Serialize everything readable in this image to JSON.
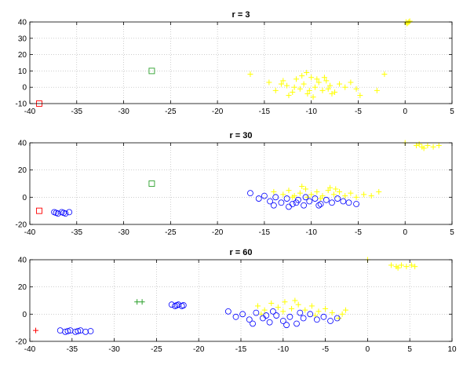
{
  "chart_data": [
    {
      "type": "scatter",
      "title": "r = 3",
      "xlabel": "",
      "ylabel": "",
      "xlim": [
        -40,
        5
      ],
      "ylim": [
        -10,
        40
      ],
      "xticks": [
        -40,
        -35,
        -30,
        -25,
        -20,
        -15,
        -10,
        -5,
        0,
        5
      ],
      "yticks": [
        -10,
        0,
        10,
        20,
        30,
        40
      ],
      "xtick_labels": [
        "-40",
        "-35",
        "-30",
        "-25",
        "-20",
        "-15",
        "-10",
        "-5",
        "0",
        "5"
      ],
      "ytick_labels": [
        "-10",
        "0",
        "10",
        "20",
        "30",
        "40"
      ],
      "grid": true,
      "series": [
        {
          "marker": "plus",
          "color": "#ffff00",
          "points": [
            [
              -14.5,
              3
            ],
            [
              -13.8,
              -2
            ],
            [
              -13,
              4
            ],
            [
              -12.6,
              1
            ],
            [
              -12,
              -3
            ],
            [
              -11.6,
              5
            ],
            [
              -11.2,
              -1
            ],
            [
              -10.8,
              2
            ],
            [
              -10.4,
              -4
            ],
            [
              -10,
              6
            ],
            [
              -9.6,
              0
            ],
            [
              -9.2,
              3
            ],
            [
              -8.8,
              -2
            ],
            [
              -8.4,
              4
            ],
            [
              -8,
              1
            ],
            [
              -7.5,
              -3
            ],
            [
              -7,
              2
            ],
            [
              -6.4,
              0
            ],
            [
              -5.8,
              3
            ],
            [
              -5.2,
              -1
            ],
            [
              -12.4,
              -5
            ],
            [
              -11,
              7
            ],
            [
              -9.8,
              -6
            ],
            [
              -8.6,
              6
            ],
            [
              -7.8,
              -4
            ],
            [
              -13.2,
              2
            ],
            [
              -11.8,
              0
            ],
            [
              -10.2,
              -2
            ],
            [
              -9.4,
              5
            ],
            [
              -8.2,
              -1
            ],
            [
              -16.5,
              8
            ],
            [
              -4.8,
              -5
            ],
            [
              -3,
              -2
            ],
            [
              -2.2,
              8
            ],
            [
              -10.5,
              9
            ]
          ]
        },
        {
          "marker": "plus",
          "color": "#ffff00",
          "points": [
            [
              0.2,
              39
            ],
            [
              0.4,
              40
            ],
            [
              0.3,
              39.5
            ],
            [
              0.5,
              40.5
            ],
            [
              0.1,
              40
            ]
          ]
        },
        {
          "marker": "square",
          "color": "#2ca02c",
          "points": [
            [
              -27,
              10
            ]
          ]
        },
        {
          "marker": "square",
          "color": "#ff0000",
          "points": [
            [
              -39,
              -10
            ]
          ]
        }
      ]
    },
    {
      "type": "scatter",
      "title": "r = 30",
      "xlabel": "",
      "ylabel": "",
      "xlim": [
        -40,
        5
      ],
      "ylim": [
        -20,
        40
      ],
      "xticks": [
        -40,
        -35,
        -30,
        -25,
        -20,
        -15,
        -10,
        -5,
        0,
        5
      ],
      "yticks": [
        -20,
        0,
        20,
        40
      ],
      "xtick_labels": [
        "-40",
        "-35",
        "-30",
        "-25",
        "-20",
        "-15",
        "-10",
        "-5",
        "0",
        "5"
      ],
      "ytick_labels": [
        "-20",
        "0",
        "20",
        "40"
      ],
      "grid": true,
      "series": [
        {
          "marker": "plus",
          "color": "#ffff00",
          "points": [
            [
              -14,
              4
            ],
            [
              -13,
              2
            ],
            [
              -12.4,
              5
            ],
            [
              -11.8,
              1
            ],
            [
              -11.2,
              3
            ],
            [
              -10.6,
              6
            ],
            [
              -10,
              2
            ],
            [
              -9.4,
              4
            ],
            [
              -8.8,
              1
            ],
            [
              -8.2,
              5
            ],
            [
              -7.6,
              2
            ],
            [
              -7,
              4
            ],
            [
              -6.4,
              1
            ],
            [
              -5.8,
              3
            ],
            [
              -5.2,
              0
            ],
            [
              -4.4,
              2
            ],
            [
              -3.6,
              1
            ],
            [
              -12,
              0
            ],
            [
              -10.4,
              0
            ],
            [
              -9,
              -1
            ],
            [
              -7.4,
              6
            ],
            [
              -11,
              8
            ],
            [
              -8,
              7
            ],
            [
              -2.8,
              4
            ]
          ]
        },
        {
          "marker": "plus",
          "color": "#ffff00",
          "points": [
            [
              1.2,
              38
            ],
            [
              1.8,
              37
            ],
            [
              2.4,
              38
            ],
            [
              3,
              37
            ],
            [
              3.6,
              38
            ],
            [
              2,
              36
            ],
            [
              0,
              40
            ],
            [
              1.5,
              39
            ]
          ]
        },
        {
          "marker": "circle",
          "color": "#0000ff",
          "points": [
            [
              -16.5,
              3
            ],
            [
              -15.6,
              -1
            ],
            [
              -15,
              1
            ],
            [
              -14.4,
              -3
            ],
            [
              -13.8,
              0
            ],
            [
              -13.2,
              -4
            ],
            [
              -12.6,
              -1
            ],
            [
              -12,
              -5
            ],
            [
              -11.4,
              -2
            ],
            [
              -10.8,
              -6
            ],
            [
              -10.2,
              -3
            ],
            [
              -9.6,
              -1
            ],
            [
              -9,
              -5
            ],
            [
              -8.4,
              -2
            ],
            [
              -7.8,
              -4
            ],
            [
              -7.2,
              -1
            ],
            [
              -6.6,
              -3
            ],
            [
              -6,
              -4
            ],
            [
              -5.2,
              -5
            ],
            [
              -14,
              -6
            ],
            [
              -12.4,
              -7
            ],
            [
              -10.6,
              0
            ],
            [
              -9.2,
              -6
            ],
            [
              -11.6,
              -4
            ]
          ]
        },
        {
          "marker": "circle",
          "color": "#0000ff",
          "points": [
            [
              -37.4,
              -11
            ],
            [
              -37,
              -12
            ],
            [
              -36.6,
              -11
            ],
            [
              -36.2,
              -12
            ],
            [
              -35.8,
              -11
            ],
            [
              -36.4,
              -11.5
            ],
            [
              -37.2,
              -11.5
            ]
          ]
        },
        {
          "marker": "square",
          "color": "#2ca02c",
          "points": [
            [
              -27,
              10
            ]
          ]
        },
        {
          "marker": "square",
          "color": "#ff0000",
          "points": [
            [
              -39,
              -10
            ]
          ]
        }
      ]
    },
    {
      "type": "scatter",
      "title": "r = 60",
      "xlabel": "",
      "ylabel": "",
      "xlim": [
        -40,
        10
      ],
      "ylim": [
        -20,
        40
      ],
      "xticks": [
        -40,
        -35,
        -30,
        -25,
        -20,
        -15,
        -10,
        -5,
        0,
        5,
        10
      ],
      "yticks": [
        -20,
        0,
        20,
        40
      ],
      "xtick_labels": [
        "-40",
        "-35",
        "-30",
        "-25",
        "-20",
        "-15",
        "-10",
        "-5",
        "0",
        "5",
        "10"
      ],
      "ytick_labels": [
        "-20",
        "0",
        "20",
        "40"
      ],
      "grid": true,
      "series": [
        {
          "marker": "plus",
          "color": "#ffff00",
          "points": [
            [
              -13,
              6
            ],
            [
              -12.2,
              3
            ],
            [
              -11.4,
              8
            ],
            [
              -10.6,
              5
            ],
            [
              -9.8,
              9
            ],
            [
              -9,
              4
            ],
            [
              -8.2,
              7
            ],
            [
              -7.4,
              3
            ],
            [
              -6.6,
              6
            ],
            [
              -5.8,
              2
            ],
            [
              -5,
              4
            ],
            [
              -4.2,
              1
            ],
            [
              -3,
              0
            ],
            [
              -2.6,
              3
            ],
            [
              -12.6,
              0
            ],
            [
              -10,
              2
            ],
            [
              -8.6,
              10
            ],
            [
              -6.2,
              -1
            ],
            [
              -3.4,
              -3
            ]
          ]
        },
        {
          "marker": "plus",
          "color": "#ffff00",
          "points": [
            [
              2.8,
              36
            ],
            [
              3.4,
              35
            ],
            [
              4,
              36
            ],
            [
              4.6,
              35
            ],
            [
              5.2,
              36
            ],
            [
              3.6,
              34
            ],
            [
              0,
              40
            ],
            [
              5.6,
              35
            ]
          ]
        },
        {
          "marker": "circle",
          "color": "#0000ff",
          "points": [
            [
              -16.5,
              2
            ],
            [
              -15.6,
              -2
            ],
            [
              -14.8,
              0
            ],
            [
              -14,
              -4
            ],
            [
              -13.2,
              1
            ],
            [
              -12.4,
              -3
            ],
            [
              -11.6,
              -6
            ],
            [
              -10.8,
              -1
            ],
            [
              -10,
              -5
            ],
            [
              -9.2,
              -2
            ],
            [
              -8.4,
              -7
            ],
            [
              -7.6,
              -3
            ],
            [
              -6.8,
              0
            ],
            [
              -6,
              -4
            ],
            [
              -5.2,
              -2
            ],
            [
              -4.4,
              -5
            ],
            [
              -3.6,
              -3
            ],
            [
              -13.6,
              -7
            ],
            [
              -11.2,
              2
            ],
            [
              -9.6,
              -8
            ],
            [
              -8,
              1
            ],
            [
              -12,
              -1
            ]
          ]
        },
        {
          "marker": "circle",
          "color": "#0000ff",
          "points": [
            [
              -23.2,
              7
            ],
            [
              -22.8,
              6
            ],
            [
              -22.4,
              7
            ],
            [
              -22,
              6
            ],
            [
              -21.8,
              6.5
            ],
            [
              -22.6,
              6.5
            ]
          ]
        },
        {
          "marker": "circle",
          "color": "#0000ff",
          "points": [
            [
              -36.4,
              -12
            ],
            [
              -35.8,
              -13
            ],
            [
              -35.2,
              -12
            ],
            [
              -34.6,
              -13
            ],
            [
              -34,
              -12
            ],
            [
              -33.4,
              -13
            ],
            [
              -32.8,
              -12.5
            ],
            [
              -35.5,
              -12.5
            ],
            [
              -34.3,
              -12.5
            ]
          ]
        },
        {
          "marker": "plus",
          "color": "#2ca02c",
          "points": [
            [
              -27.3,
              9
            ],
            [
              -26.7,
              9
            ]
          ]
        },
        {
          "marker": "plus",
          "color": "#ff0000",
          "points": [
            [
              -39.3,
              -12
            ]
          ]
        }
      ]
    }
  ]
}
